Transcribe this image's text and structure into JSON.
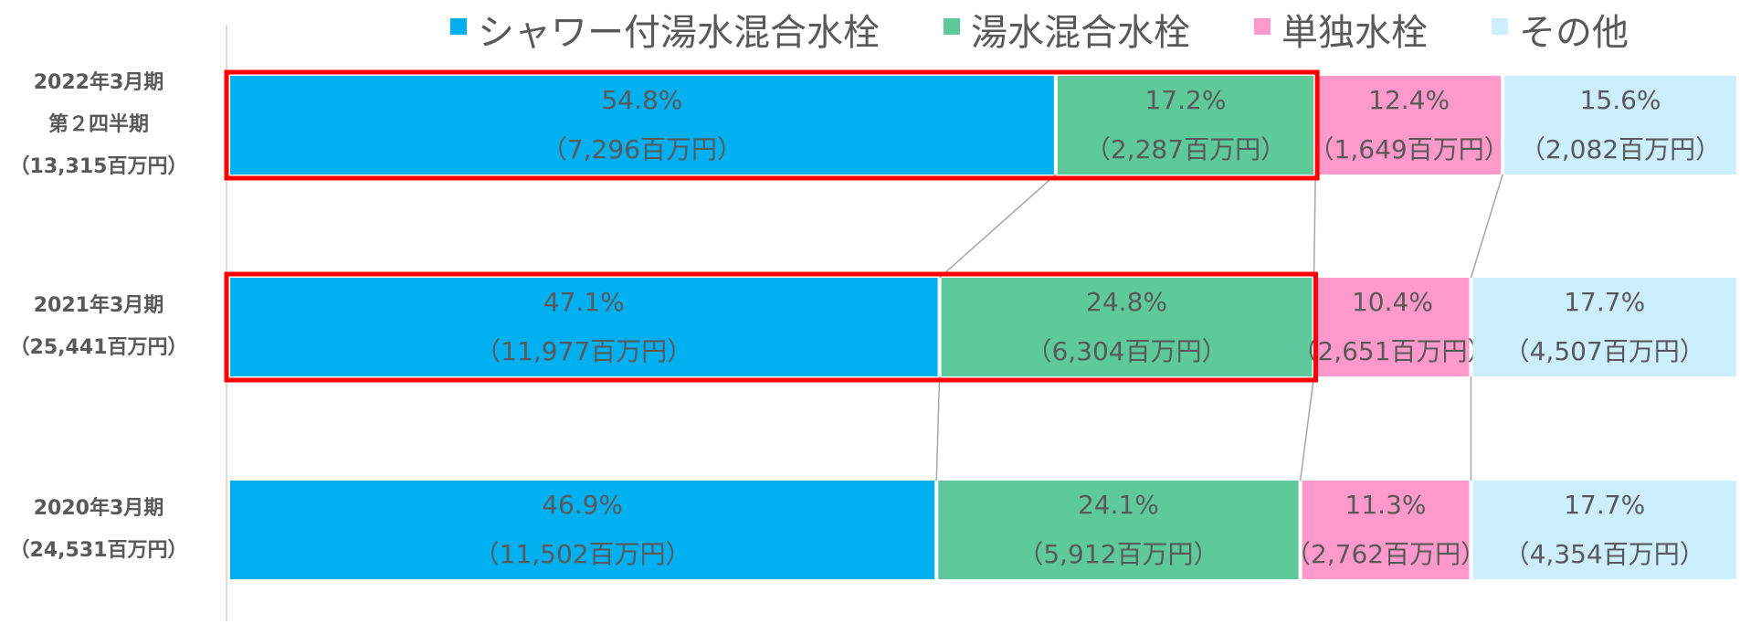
{
  "chart_data": {
    "type": "stacked_bar_100",
    "categories": [
      [
        "2022年3月期",
        "第２四半期",
        "（13,315百万円）"
      ],
      [
        "2021年3月期",
        "（25,441百万円）"
      ],
      [
        "2020年3月期",
        "（24,531百万円）"
      ]
    ],
    "xlim": [
      0,
      100
    ],
    "series": [
      {
        "name": "シャワー付湯水混合水栓",
        "color": "#00b0f0",
        "values": [
          54.8,
          47.1,
          46.9
        ],
        "value_labels": [
          "54.8%",
          "47.1%",
          "46.9%"
        ],
        "amount_labels": [
          "（7,296百万円）",
          "（11,977百万円）",
          "（11,502百万円）"
        ]
      },
      {
        "name": "湯水混合水栓",
        "color": "#5ec99b",
        "values": [
          17.2,
          24.8,
          24.1
        ],
        "value_labels": [
          "17.2%",
          "24.8%",
          "24.1%"
        ],
        "amount_labels": [
          "（2,287百万円）",
          "（6,304百万円）",
          "（5,912百万円）"
        ]
      },
      {
        "name": "単独水栓",
        "color": "#ff99cc",
        "values": [
          12.4,
          10.4,
          11.3
        ],
        "value_labels": [
          "12.4%",
          "10.4%",
          "11.3%"
        ],
        "amount_labels": [
          "（1,649百万円）",
          "（2,651百万円）",
          "（2,762百万円）"
        ]
      },
      {
        "name": "その他",
        "color": "#cceeff",
        "values": [
          15.6,
          17.7,
          17.7
        ],
        "value_labels": [
          "15.6%",
          "17.7%",
          "17.7%"
        ],
        "amount_labels": [
          "（2,082百万円）",
          "（4,507百万円）",
          "（4,354百万円）"
        ]
      }
    ]
  }
}
